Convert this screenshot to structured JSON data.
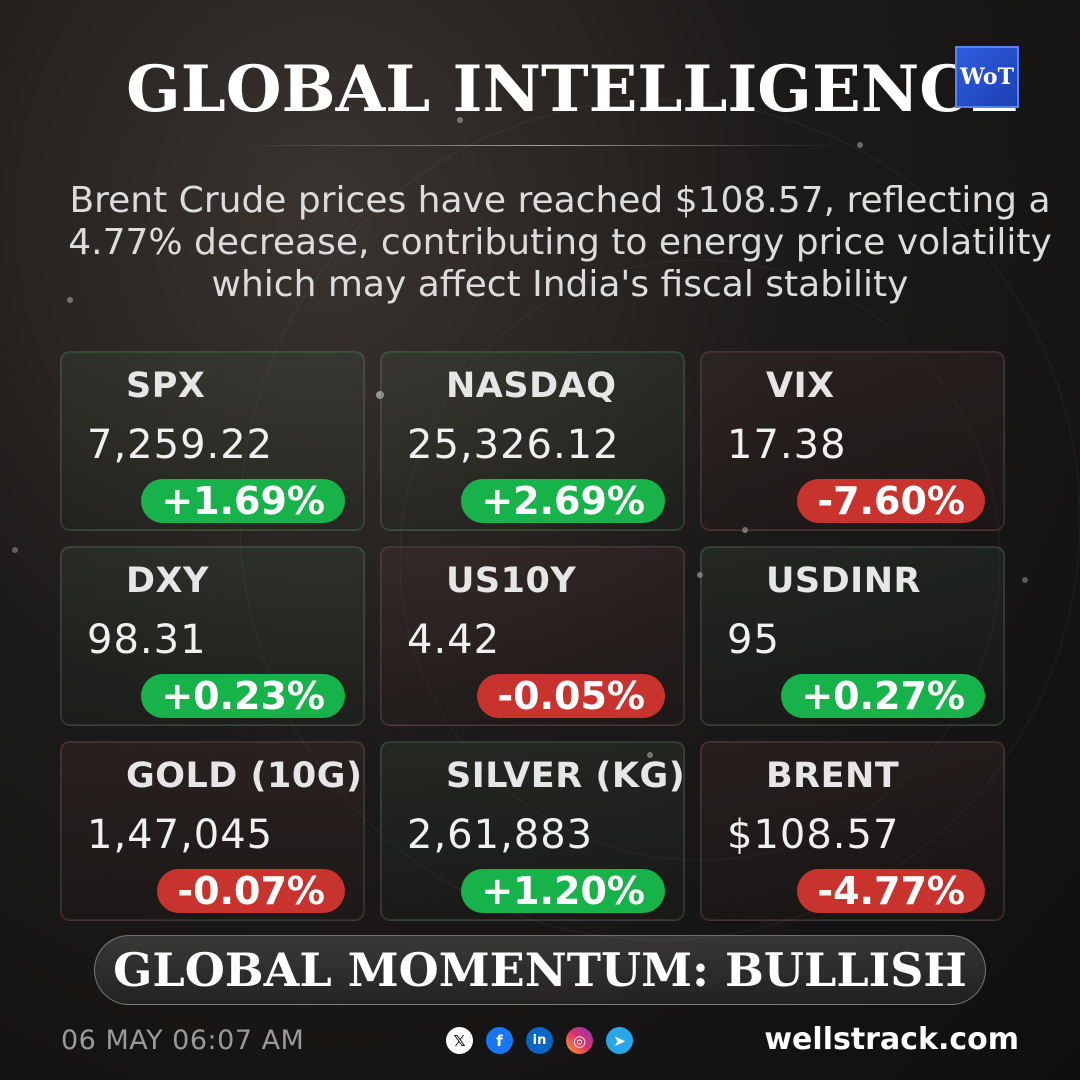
{
  "title": "GLOBAL INTELLIGENCE",
  "logo": {
    "text": "WoT"
  },
  "headline": "Brent Crude prices have reached $108.57, reflecting a 4.77% decrease, contributing to energy price volatility which may affect India's fiscal stability",
  "colors": {
    "positive": "#18b24a",
    "negative": "#c9332e"
  },
  "markets": [
    {
      "label": "SPX",
      "value": "7,259.22",
      "change": "+1.69%",
      "direction": "up"
    },
    {
      "label": "NASDAQ",
      "value": "25,326.12",
      "change": "+2.69%",
      "direction": "up"
    },
    {
      "label": "VIX",
      "value": "17.38",
      "change": "-7.60%",
      "direction": "down"
    },
    {
      "label": "DXY",
      "value": "98.31",
      "change": "+0.23%",
      "direction": "up"
    },
    {
      "label": "US10Y",
      "value": "4.42",
      "change": "-0.05%",
      "direction": "down"
    },
    {
      "label": "USDINR",
      "value": "95",
      "change": "+0.27%",
      "direction": "up"
    },
    {
      "label": "GOLD (10G)",
      "value": "1,47,045",
      "change": "-0.07%",
      "direction": "down"
    },
    {
      "label": "SILVER (KG)",
      "value": "2,61,883",
      "change": "+1.20%",
      "direction": "up"
    },
    {
      "label": "BRENT",
      "value": "$108.57",
      "change": "-4.77%",
      "direction": "down"
    }
  ],
  "momentum": "GLOBAL MOMENTUM: BULLISH",
  "footer": {
    "date": "06 MAY 06:07 AM",
    "socials": [
      {
        "icon": "x-icon",
        "glyph": "𝕏"
      },
      {
        "icon": "facebook-icon",
        "glyph": "f"
      },
      {
        "icon": "linkedin-icon",
        "glyph": "in"
      },
      {
        "icon": "instagram-icon",
        "glyph": "◎"
      },
      {
        "icon": "telegram-icon",
        "glyph": "➤"
      }
    ],
    "site": "wellstrack.com"
  }
}
